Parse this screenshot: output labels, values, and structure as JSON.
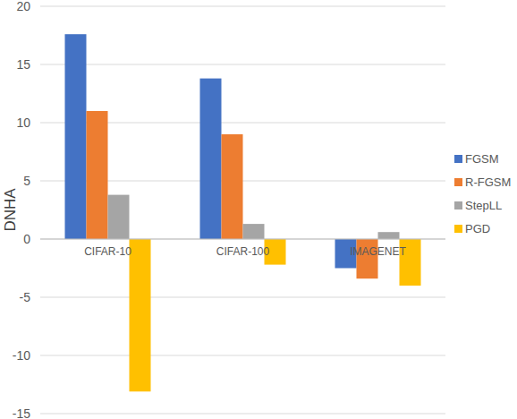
{
  "chart_data": {
    "type": "bar",
    "y_label": "DNHA",
    "categories": [
      "CIFAR-10",
      "CIFAR-100",
      "IMAGENET"
    ],
    "series": [
      {
        "name": "FGSM",
        "color": "#4472c4",
        "values": [
          17.6,
          13.8,
          -2.5
        ]
      },
      {
        "name": "R-FGSM",
        "color": "#ed7d31",
        "values": [
          11.0,
          9.0,
          -3.4
        ]
      },
      {
        "name": "StepLL",
        "color": "#a5a5a5",
        "values": [
          3.8,
          1.3,
          0.6
        ]
      },
      {
        "name": "PGD",
        "color": "#ffc000",
        "values": [
          -13.1,
          -2.2,
          -4.0
        ]
      }
    ],
    "ylim": [
      -15,
      20
    ],
    "yticks": [
      -15,
      -10,
      -5,
      0,
      5,
      10,
      15,
      20
    ],
    "grid": true,
    "legend": "right"
  }
}
